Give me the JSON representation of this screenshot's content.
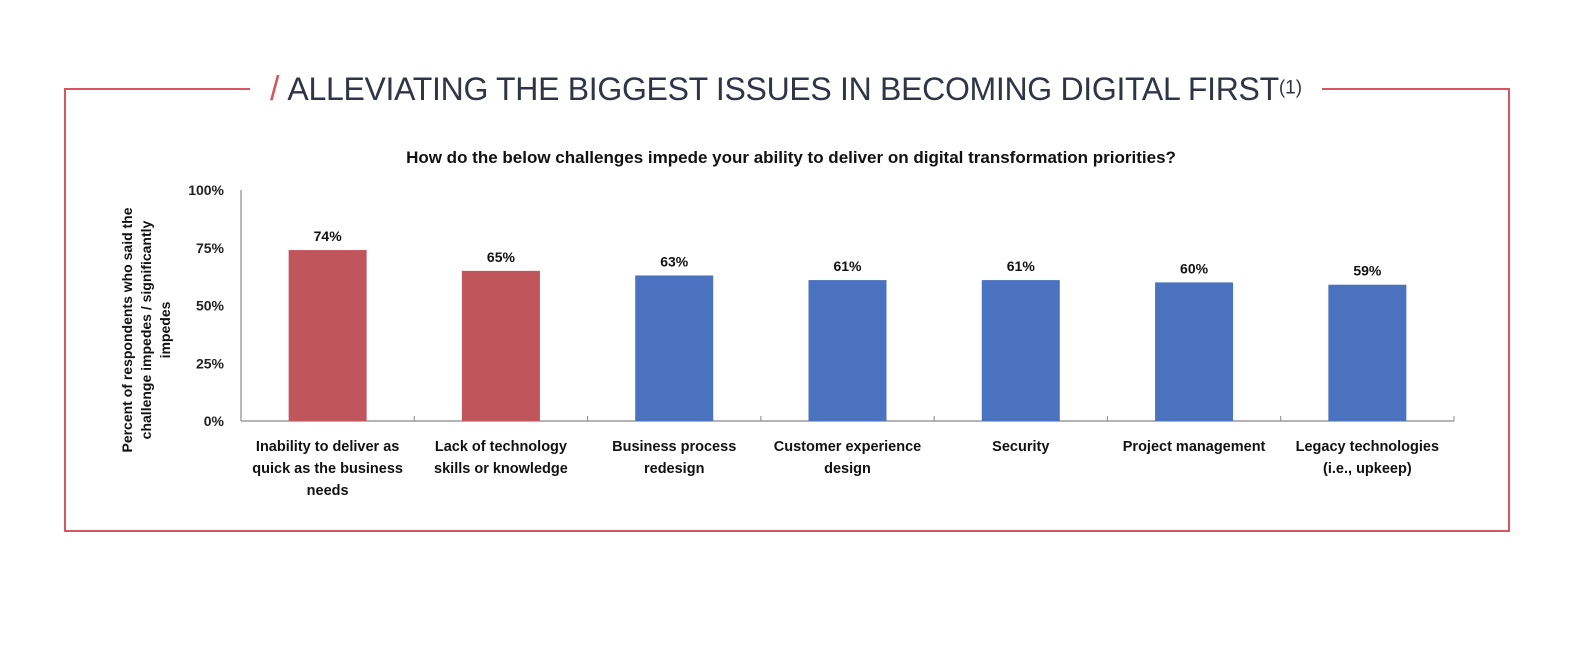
{
  "header": {
    "slash": "/",
    "title": "ALLEVIATING THE BIGGEST ISSUES IN BECOMING DIGITAL FIRST",
    "footnote": "(1)"
  },
  "colors": {
    "accent": "#d9545c",
    "highlight_bar": "#c0555c",
    "default_bar": "#4a72be",
    "title_text": "#2f3546"
  },
  "chart_data": {
    "type": "bar",
    "title": "How do the below challenges impede your ability to deliver on digital transformation priorities?",
    "xlabel": "",
    "ylabel_lines": [
      "Percent of respondents who said the",
      "challenge impedes / significantly",
      "impedes"
    ],
    "ylim": [
      0,
      100
    ],
    "yticks": [
      "0%",
      "25%",
      "50%",
      "75%",
      "100%"
    ],
    "ytick_values": [
      0,
      25,
      50,
      75,
      100
    ],
    "grid": false,
    "categories": [
      [
        "Inability to deliver as",
        "quick as the business",
        "needs"
      ],
      [
        "Lack of technology",
        "skills or knowledge"
      ],
      [
        "Business process",
        "redesign"
      ],
      [
        "Customer experience",
        "design"
      ],
      [
        "Security"
      ],
      [
        "Project management"
      ],
      [
        "Legacy technologies",
        "(i.e., upkeep)"
      ]
    ],
    "values": [
      74,
      65,
      63,
      61,
      61,
      60,
      59
    ],
    "data_labels": [
      "74%",
      "65%",
      "63%",
      "61%",
      "61%",
      "60%",
      "59%"
    ],
    "highlighted": [
      true,
      true,
      false,
      false,
      false,
      false,
      false
    ]
  }
}
